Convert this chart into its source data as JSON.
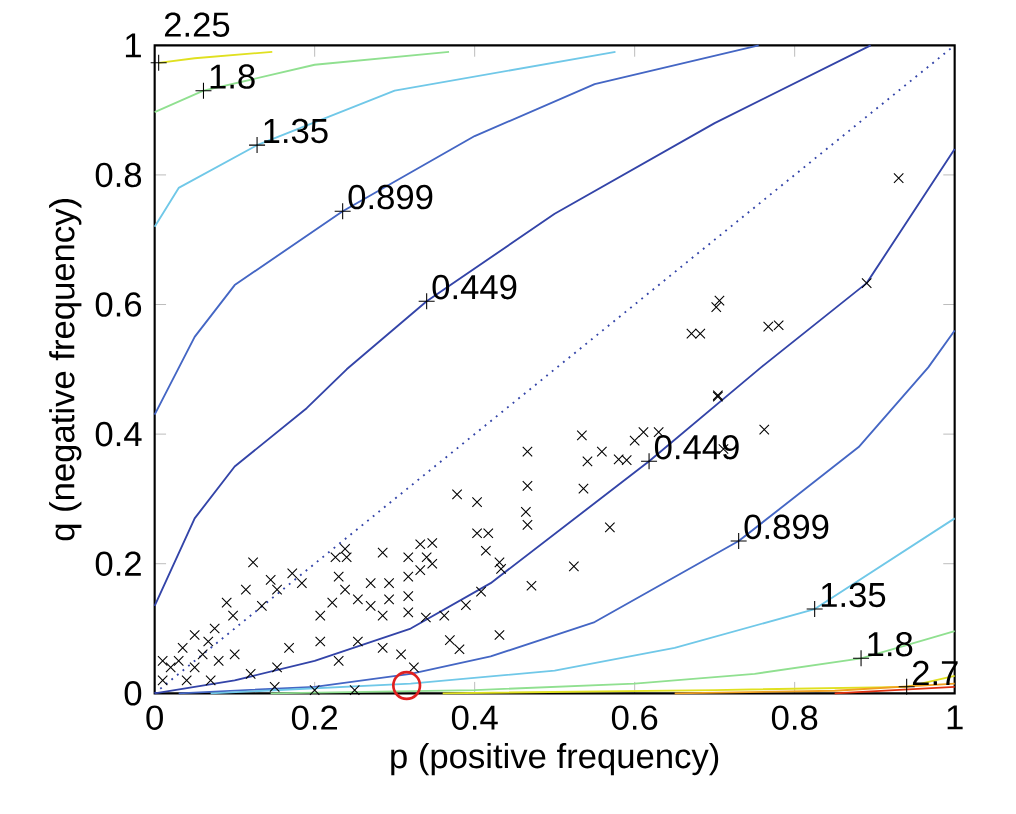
{
  "chart_data": {
    "type": "scatter",
    "xlabel": "p (positive frequency)",
    "ylabel": "q (negative frequency)",
    "xlim": [
      0,
      1
    ],
    "ylim": [
      0,
      1
    ],
    "xticks": [
      0,
      0.2,
      0.4,
      0.6,
      0.8,
      1
    ],
    "yticks": [
      0,
      0.2,
      0.4,
      0.6,
      0.8,
      1
    ],
    "series": [
      {
        "type": "line",
        "color": "#3344a8",
        "line_style": "dotted",
        "x": [
          0,
          1
        ],
        "values": [
          0,
          1
        ]
      },
      {
        "type": "line",
        "color": "#3344a8",
        "x": [
          0,
          0.05,
          0.1,
          0.19,
          0.24,
          0.34,
          0.5,
          0.7,
          0.895
        ],
        "values": [
          0.135,
          0.27,
          0.35,
          0.44,
          0.5,
          0.605,
          0.74,
          0.88,
          1
        ]
      },
      {
        "type": "line",
        "color": "#4466c4",
        "x": [
          0,
          0.05,
          0.1,
          0.235,
          0.4,
          0.55,
          0.755
        ],
        "values": [
          0.43,
          0.55,
          0.63,
          0.744,
          0.86,
          0.94,
          1
        ]
      },
      {
        "type": "line",
        "color": "#70c8e8",
        "x": [
          0,
          0.03,
          0.128,
          0.3,
          0.576
        ],
        "values": [
          0.72,
          0.78,
          0.846,
          0.93,
          0.99
        ]
      },
      {
        "type": "line",
        "color": "#90e090",
        "x": [
          0,
          0.061,
          0.2,
          0.368
        ],
        "values": [
          0.897,
          0.93,
          0.97,
          0.99
        ]
      },
      {
        "type": "line",
        "color": "#e0e020",
        "x": [
          0.005,
          0.05,
          0.147
        ],
        "values": [
          0.973,
          0.98,
          0.99
        ]
      },
      {
        "type": "line",
        "color": "#3344a8",
        "x": [
          0,
          0.1,
          0.2,
          0.32,
          0.42,
          0.618,
          0.758,
          0.89,
          1
        ],
        "values": [
          0,
          0.02,
          0.05,
          0.1,
          0.17,
          0.358,
          0.503,
          0.633,
          0.84
        ]
      },
      {
        "type": "line",
        "color": "#4466c4",
        "x": [
          0.03,
          0.2,
          0.32,
          0.42,
          0.55,
          0.73,
          0.88,
          0.967,
          1
        ],
        "values": [
          0,
          0.01,
          0.03,
          0.057,
          0.11,
          0.235,
          0.38,
          0.503,
          0.56
        ]
      },
      {
        "type": "line",
        "color": "#70c8e8",
        "x": [
          0.07,
          0.32,
          0.5,
          0.65,
          0.825,
          1
        ],
        "values": [
          0,
          0.015,
          0.035,
          0.07,
          0.13,
          0.27
        ]
      },
      {
        "type": "line",
        "color": "#90e090",
        "x": [
          0.145,
          0.4,
          0.6,
          0.75,
          0.883,
          1
        ],
        "values": [
          0,
          0.005,
          0.015,
          0.03,
          0.054,
          0.096
        ]
      },
      {
        "type": "line",
        "color": "#e0e020",
        "x": [
          0.36,
          0.7,
          0.94,
          1
        ],
        "values": [
          0,
          0.005,
          0.01,
          0.027
        ]
      },
      {
        "type": "line",
        "color": "#f0a020",
        "x": [
          0.65,
          0.85,
          1
        ],
        "values": [
          0,
          0.004,
          0.015
        ]
      },
      {
        "type": "line",
        "color": "#e03010",
        "x": [
          0.85,
          1
        ],
        "values": [
          0,
          0.01
        ]
      },
      {
        "type": "scatter",
        "color": "#000000",
        "marker": "cross",
        "x": [
          0.704,
          0.762,
          0.63,
          0.611,
          0.6,
          0.711,
          0.534,
          0.559,
          0.541,
          0.58,
          0.59,
          0.536,
          0.466,
          0.466,
          0.464,
          0.466,
          0.378,
          0.403,
          0.403,
          0.417,
          0.414,
          0.431,
          0.433,
          0.471,
          0.524,
          0.569,
          0.408,
          0.389,
          0.362,
          0.339,
          0.431,
          0.369,
          0.381,
          0.347,
          0.332,
          0.317,
          0.34,
          0.347,
          0.332,
          0.317,
          0.293,
          0.317,
          0.293,
          0.317,
          0.285,
          0.27,
          0.27,
          0.285,
          0.238,
          0.226,
          0.24,
          0.23,
          0.238,
          0.254,
          0.222,
          0.207,
          0.184,
          0.172,
          0.153,
          0.123,
          0.145,
          0.134,
          0.114,
          0.098,
          0.09,
          0.075,
          0.067,
          0.05,
          0.035,
          0.207,
          0.168,
          0.254,
          0.285,
          0.308,
          0.324,
          0.23,
          0.153,
          0.01,
          0.02,
          0.03,
          0.05,
          0.08,
          0.1,
          0.12,
          0.04,
          0.07,
          0.15,
          0.2,
          0.25,
          0.01,
          0.06,
          0.671,
          0.682,
          0.702,
          0.706,
          0.767,
          0.78,
          0.89,
          0.93,
          0.704
        ],
        "values": [
          0.458,
          0.407,
          0.403,
          0.403,
          0.39,
          0.377,
          0.398,
          0.373,
          0.358,
          0.361,
          0.36,
          0.316,
          0.373,
          0.32,
          0.28,
          0.26,
          0.307,
          0.295,
          0.247,
          0.247,
          0.22,
          0.202,
          0.192,
          0.166,
          0.196,
          0.256,
          0.157,
          0.136,
          0.12,
          0.117,
          0.09,
          0.082,
          0.068,
          0.232,
          0.23,
          0.21,
          0.21,
          0.2,
          0.19,
          0.18,
          0.17,
          0.15,
          0.145,
          0.125,
          0.12,
          0.17,
          0.135,
          0.217,
          0.223,
          0.21,
          0.21,
          0.18,
          0.16,
          0.145,
          0.14,
          0.12,
          0.17,
          0.185,
          0.16,
          0.202,
          0.175,
          0.135,
          0.16,
          0.12,
          0.14,
          0.1,
          0.08,
          0.09,
          0.07,
          0.08,
          0.07,
          0.08,
          0.07,
          0.06,
          0.04,
          0.05,
          0.04,
          0.05,
          0.04,
          0.05,
          0.04,
          0.05,
          0.06,
          0.03,
          0.02,
          0.02,
          0.01,
          0.005,
          0.005,
          0.02,
          0.06,
          0.555,
          0.555,
          0.596,
          0.606,
          0.566,
          0.568,
          0.633,
          0.795,
          0.46
        ]
      },
      {
        "color": "#e02020",
        "marker": "circle",
        "x": [
          0.315
        ],
        "values": [
          0.012
        ]
      }
    ],
    "annotations": [
      {
        "text": "0.449",
        "x": 0.34,
        "y": 0.605
      },
      {
        "text": "0.899",
        "x": 0.235,
        "y": 0.744
      },
      {
        "text": "1.35",
        "x": 0.128,
        "y": 0.846
      },
      {
        "text": "1.8",
        "x": 0.061,
        "y": 0.93
      },
      {
        "text": "2.25",
        "x": 0.005,
        "y": 0.973
      },
      {
        "text": "0.449",
        "x": 0.618,
        "y": 0.358
      },
      {
        "text": "0.899",
        "x": 0.73,
        "y": 0.235
      },
      {
        "text": "1.35",
        "x": 0.825,
        "y": 0.13
      },
      {
        "text": "1.8",
        "x": 0.883,
        "y": 0.054
      },
      {
        "text": "2.7",
        "x": 0.94,
        "y": 0.01
      }
    ]
  }
}
